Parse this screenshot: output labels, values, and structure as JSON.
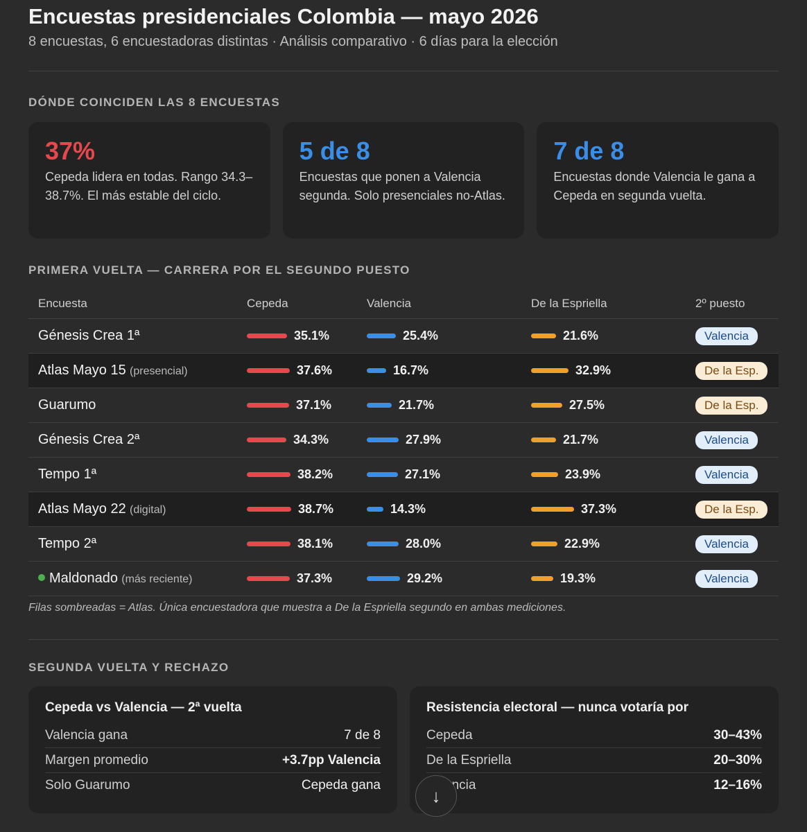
{
  "header": {
    "title": "Encuestas presidenciales Colombia — mayo 2026",
    "subtitle": "8 encuestas, 6 encuestadoras distintas · Análisis comparativo · 6 días para la elección"
  },
  "colors": {
    "cepeda": "#e5484d",
    "valencia": "#3b8ee6",
    "espriella": "#f0a02a"
  },
  "consensus": {
    "heading": "DÓNDE COINCIDEN LAS 8 ENCUESTAS",
    "cards": [
      {
        "big": "37%",
        "desc": "Cepeda lidera en todas. Rango 34.3–38.7%. El más estable del ciclo."
      },
      {
        "big": "5 de 8",
        "desc": "Encuestas que ponen a Valencia segunda. Solo presenciales no-Atlas."
      },
      {
        "big": "7 de 8",
        "desc": "Encuestas donde Valencia le gana a Cepeda en segunda vuelta."
      }
    ]
  },
  "race": {
    "heading": "PRIMERA VUELTA — CARRERA POR EL SEGUNDO PUESTO",
    "columns": [
      "Encuesta",
      "Cepeda",
      "Valencia",
      "De la Espriella",
      "2º puesto"
    ],
    "rows": [
      {
        "name": "Génesis Crea 1ª",
        "note": "",
        "dot": false,
        "shaded": false,
        "cepeda": 35.1,
        "valencia": 25.4,
        "espriella": 21.6,
        "cepeda_label": "35.1%",
        "valencia_label": "25.4%",
        "espriella_label": "21.6%",
        "second": "Valencia",
        "second_type": "val"
      },
      {
        "name": "Atlas Mayo 15",
        "note": "(presencial)",
        "dot": false,
        "shaded": true,
        "cepeda": 37.6,
        "valencia": 16.7,
        "espriella": 32.9,
        "cepeda_label": "37.6%",
        "valencia_label": "16.7%",
        "espriella_label": "32.9%",
        "second": "De la Esp.",
        "second_type": "esp"
      },
      {
        "name": "Guarumo",
        "note": "",
        "dot": false,
        "shaded": false,
        "cepeda": 37.1,
        "valencia": 21.7,
        "espriella": 27.5,
        "cepeda_label": "37.1%",
        "valencia_label": "21.7%",
        "espriella_label": "27.5%",
        "second": "De la Esp.",
        "second_type": "esp"
      },
      {
        "name": "Génesis Crea 2ª",
        "note": "",
        "dot": false,
        "shaded": false,
        "cepeda": 34.3,
        "valencia": 27.9,
        "espriella": 21.7,
        "cepeda_label": "34.3%",
        "valencia_label": "27.9%",
        "espriella_label": "21.7%",
        "second": "Valencia",
        "second_type": "val"
      },
      {
        "name": "Tempo 1ª",
        "note": "",
        "dot": false,
        "shaded": false,
        "cepeda": 38.2,
        "valencia": 27.1,
        "espriella": 23.9,
        "cepeda_label": "38.2%",
        "valencia_label": "27.1%",
        "espriella_label": "23.9%",
        "second": "Valencia",
        "second_type": "val"
      },
      {
        "name": "Atlas Mayo 22",
        "note": "(digital)",
        "dot": false,
        "shaded": true,
        "cepeda": 38.7,
        "valencia": 14.3,
        "espriella": 37.3,
        "cepeda_label": "38.7%",
        "valencia_label": "14.3%",
        "espriella_label": "37.3%",
        "second": "De la Esp.",
        "second_type": "esp"
      },
      {
        "name": "Tempo 2ª",
        "note": "",
        "dot": false,
        "shaded": false,
        "cepeda": 38.1,
        "valencia": 28.0,
        "espriella": 22.9,
        "cepeda_label": "38.1%",
        "valencia_label": "28.0%",
        "espriella_label": "22.9%",
        "second": "Valencia",
        "second_type": "val"
      },
      {
        "name": "Maldonado",
        "note": "(más reciente)",
        "dot": true,
        "shaded": false,
        "cepeda": 37.3,
        "valencia": 29.2,
        "espriella": 19.3,
        "cepeda_label": "37.3%",
        "valencia_label": "29.2%",
        "espriella_label": "19.3%",
        "second": "Valencia",
        "second_type": "val"
      }
    ],
    "footnote": "Filas sombreadas = Atlas. Única encuestadora que muestra a De la Espriella segundo en ambas mediciones."
  },
  "runoff": {
    "heading": "SEGUNDA VUELTA Y RECHAZO",
    "left": {
      "title": "Cepeda vs Valencia — 2ª vuelta",
      "rows": [
        {
          "label": "Valencia gana",
          "value": "7 de 8",
          "tone": "blue"
        },
        {
          "label": "Margen promedio",
          "value": "+3.7pp Valencia",
          "tone": ""
        },
        {
          "label": "Solo Guarumo",
          "value": "Cepeda gana",
          "tone": "red"
        }
      ]
    },
    "right": {
      "title": "Resistencia electoral — nunca votaría por",
      "rows": [
        {
          "label": "Cepeda",
          "value": "30–43%",
          "tone": "red"
        },
        {
          "label": "De la Espriella",
          "value": "20–30%",
          "tone": "orange"
        },
        {
          "label": "Valencia",
          "value": "12–16%",
          "tone": "blue"
        }
      ]
    }
  },
  "scroll_button": {
    "icon": "arrow-down-icon",
    "glyph": "↓"
  }
}
